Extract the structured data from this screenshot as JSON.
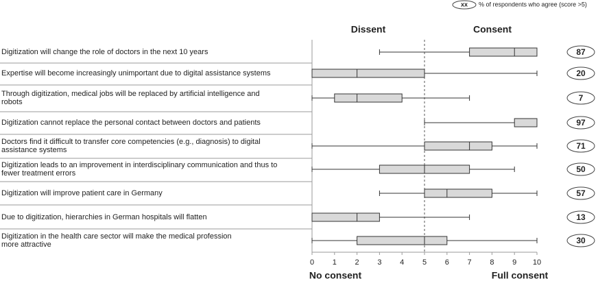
{
  "chart_data": {
    "type": "boxplot",
    "legend_key": "xx",
    "legend_text": "% of respondents who agree (score >5)",
    "left_header": "Dissent",
    "right_header": "Consent",
    "left_axis_label": "No consent",
    "right_axis_label": "Full consent",
    "categories": [
      [
        "Digitization will change the role of doctors in the next 10 years"
      ],
      [
        "Expertise will become increasingly unimportant due to digital assistance systems"
      ],
      [
        "Through digitization, medical jobs will be replaced by artificial intelligence and",
        "robots"
      ],
      [
        "Digitization cannot replace the personal contact between doctors and patients"
      ],
      [
        "Doctors find it difficult to transfer core competencies (e.g., diagnosis) to digital",
        "assistance systems"
      ],
      [
        "Digitization leads to an improvement in interdisciplinary communication and thus to",
        "fewer treatment errors"
      ],
      [
        "Digitization will improve patient care in Germany"
      ],
      [
        "Due to digitization, hierarchies in German hospitals will flatten"
      ],
      [
        "Digitization in the health care sector will make the medical profession",
        "more attractive"
      ]
    ],
    "boxes": [
      {
        "min": 3,
        "q1": 7,
        "median": 9,
        "q3": 10,
        "max": 10
      },
      {
        "min": 0,
        "q1": 0,
        "median": 2,
        "q3": 5,
        "max": 10
      },
      {
        "min": 0,
        "q1": 1,
        "median": 2,
        "q3": 4,
        "max": 7
      },
      {
        "min": 5,
        "q1": 9,
        "median": 10,
        "q3": 10,
        "max": 10
      },
      {
        "min": 0,
        "q1": 5,
        "median": 7,
        "q3": 8,
        "max": 10
      },
      {
        "min": 0,
        "q1": 3,
        "median": 5,
        "q3": 7,
        "max": 9
      },
      {
        "min": 3,
        "q1": 5,
        "median": 6,
        "q3": 8,
        "max": 10
      },
      {
        "min": 0,
        "q1": 0,
        "median": 2,
        "q3": 3,
        "max": 7
      },
      {
        "min": 0,
        "q1": 2,
        "median": 5,
        "q3": 6,
        "max": 10
      }
    ],
    "agree_percent": [
      87,
      20,
      7,
      97,
      71,
      50,
      57,
      13,
      30
    ],
    "box_color": "#d9d9d9",
    "reference_line": 5,
    "xlim": [
      0,
      10
    ],
    "xticks": [
      0,
      1,
      2,
      3,
      4,
      5,
      6,
      7,
      8,
      9,
      10
    ]
  }
}
